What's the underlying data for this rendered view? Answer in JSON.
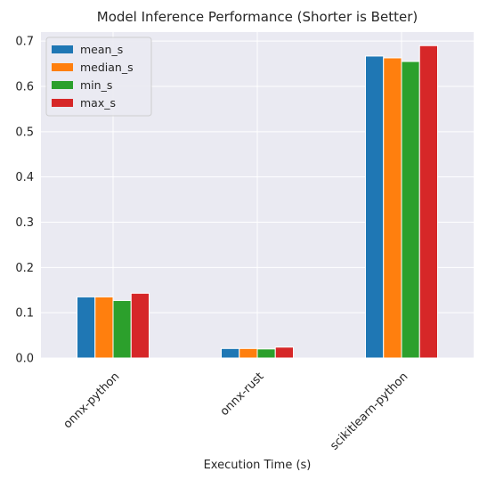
{
  "chart_data": {
    "type": "bar",
    "title": "Model Inference Performance (Shorter is Better)",
    "xlabel": "Execution Time (s)",
    "ylabel": "",
    "categories": [
      "onnx-python",
      "onnx-rust",
      "scikitlearn-python"
    ],
    "series": [
      {
        "name": "mean_s",
        "color": "#1f77b4",
        "values": [
          0.135,
          0.021,
          0.667
        ]
      },
      {
        "name": "median_s",
        "color": "#ff7f0e",
        "values": [
          0.135,
          0.021,
          0.663
        ]
      },
      {
        "name": "min_s",
        "color": "#2ca02c",
        "values": [
          0.127,
          0.02,
          0.655
        ]
      },
      {
        "name": "max_s",
        "color": "#d62728",
        "values": [
          0.143,
          0.024,
          0.69
        ]
      }
    ],
    "ylim": [
      0,
      0.72
    ],
    "yticks": [
      "0.0",
      "0.1",
      "0.2",
      "0.3",
      "0.4",
      "0.5",
      "0.6",
      "0.7"
    ],
    "grid": true,
    "legend": "top-left",
    "background": "#eaeaf2"
  }
}
